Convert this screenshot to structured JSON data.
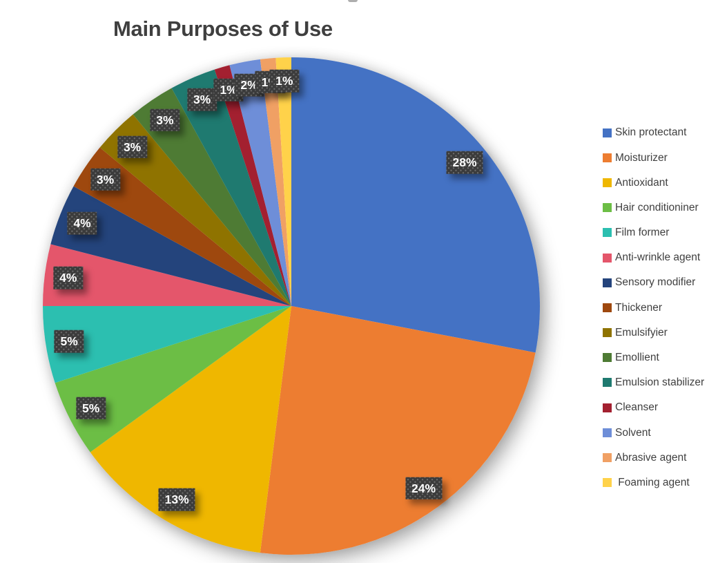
{
  "title": "Main Purposes of Use",
  "colors": {
    "title_text": "#3F3F3F",
    "legend_text": "#3F3F3F",
    "data_label_box": "#3B3B3B",
    "data_label_text": "#FFFFFF",
    "background": "#FFFFFF"
  },
  "chart_data": {
    "type": "pie",
    "title": "Main Purposes of Use",
    "start_angle_deg": 0,
    "direction": "clockwise",
    "legend_position": "right",
    "data_labels": "percent, dark dotted boxes inside slices",
    "grid": false,
    "slices": [
      {
        "label": "Skin protectant",
        "value_pct": 28,
        "data_label": "28%",
        "color": "#4472C4"
      },
      {
        "label": "Moisturizer",
        "value_pct": 24,
        "data_label": "24%",
        "color": "#ED7D31"
      },
      {
        "label": "Antioxidant",
        "value_pct": 13,
        "data_label": "13%",
        "color": "#EFB700"
      },
      {
        "label": "Hair conditioniner",
        "value_pct": 5,
        "data_label": "5%",
        "color": "#6CBE45"
      },
      {
        "label": "Film former",
        "value_pct": 5,
        "data_label": "5%",
        "color": "#2CBFB0"
      },
      {
        "label": "Anti-wrinkle agent",
        "value_pct": 4,
        "data_label": "4%",
        "color": "#E4566B"
      },
      {
        "label": "Sensory modifier",
        "value_pct": 4,
        "data_label": "4%",
        "color": "#24447C"
      },
      {
        "label": "Thickener",
        "value_pct": 3,
        "data_label": "3%",
        "color": "#9E480E"
      },
      {
        "label": "Emulsifyier",
        "value_pct": 3,
        "data_label": "3%",
        "color": "#8F7300"
      },
      {
        "label": "Emollient",
        "value_pct": 3,
        "data_label": "3%",
        "color": "#4E7B34"
      },
      {
        "label": "Emulsion stabilizer",
        "value_pct": 3,
        "data_label": "3%",
        "color": "#1F7A70"
      },
      {
        "label": "Cleanser",
        "value_pct": 1,
        "data_label": "1%",
        "color": "#A32030"
      },
      {
        "label": "Solvent",
        "value_pct": 2,
        "data_label": "2%",
        "color": "#6E8ED8"
      },
      {
        "label": "Abrasive agent",
        "value_pct": 1,
        "data_label": "1%",
        "color": "#F0A064"
      },
      {
        "label": " Foaming agent",
        "value_pct": 1,
        "data_label": "1%",
        "color": "#FFD24A"
      }
    ]
  }
}
